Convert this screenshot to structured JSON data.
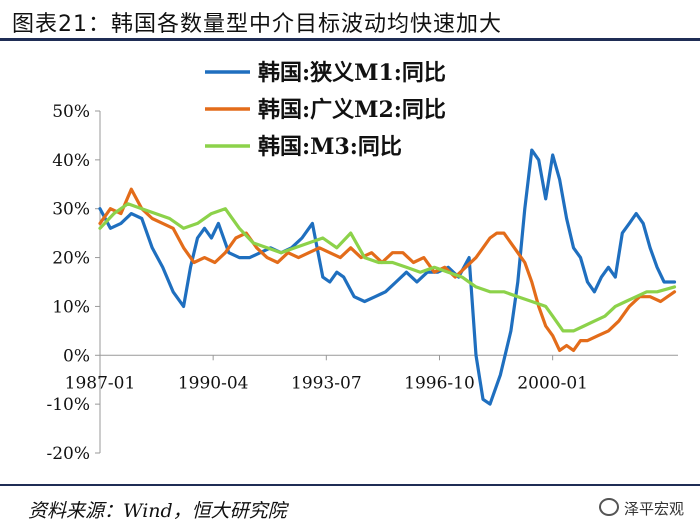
{
  "header": {
    "title": "图表21：韩国各数量型中介目标波动均快速加大"
  },
  "footer": {
    "source": "资料来源：Wind，恒大研究院",
    "watermark": "泽平宏观"
  },
  "chart_data": {
    "type": "line",
    "title": "图表21：韩国各数量型中介目标波动均快速加大",
    "xlabel": "",
    "ylabel": "",
    "ylim": [
      -20,
      50
    ],
    "yticks": [
      -20,
      -10,
      0,
      10,
      20,
      30,
      40,
      50
    ],
    "ytick_labels": [
      "-20%",
      "-10%",
      "0%",
      "10%",
      "20%",
      "30%",
      "40%",
      "50%"
    ],
    "xlim": [
      1987.0,
      2003.6
    ],
    "xticks": [
      1987.0,
      1990.25,
      1993.5,
      1996.75,
      2000.0
    ],
    "xtick_labels": [
      "1987-01",
      "1990-04",
      "1993-07",
      "1996-10",
      "2000-01"
    ],
    "legend_position": "top-right",
    "grid": false,
    "series": [
      {
        "name": "韩国:狭义M1:同比",
        "color": "#1f6fbf",
        "x": [
          1987.0,
          1987.3,
          1987.6,
          1987.9,
          1988.2,
          1988.5,
          1988.8,
          1989.1,
          1989.4,
          1989.6,
          1989.8,
          1990.0,
          1990.2,
          1990.4,
          1990.7,
          1991.0,
          1991.3,
          1991.6,
          1991.9,
          1992.2,
          1992.5,
          1992.8,
          1993.1,
          1993.4,
          1993.6,
          1993.8,
          1994.0,
          1994.3,
          1994.6,
          1994.9,
          1995.2,
          1995.5,
          1995.8,
          1996.1,
          1996.4,
          1996.7,
          1997.0,
          1997.3,
          1997.6,
          1997.8,
          1998.0,
          1998.2,
          1998.5,
          1998.8,
          1999.0,
          1999.2,
          1999.4,
          1999.6,
          1999.8,
          2000.0,
          2000.2,
          2000.4,
          2000.6,
          2000.8,
          2001.0,
          2001.2,
          2001.4,
          2001.6,
          2001.8,
          2002.0,
          2002.2,
          2002.4,
          2002.6,
          2002.8,
          2003.0,
          2003.2,
          2003.5
        ],
        "values": [
          30,
          26,
          27,
          29,
          28,
          22,
          18,
          13,
          10,
          18,
          24,
          26,
          24,
          27,
          21,
          20,
          20,
          21,
          22,
          21,
          22,
          24,
          27,
          16,
          15,
          17,
          16,
          12,
          11,
          12,
          13,
          15,
          17,
          15,
          17,
          17,
          18,
          16,
          20,
          0,
          -9,
          -10,
          -4,
          5,
          15,
          30,
          42,
          40,
          32,
          41,
          36,
          28,
          22,
          20,
          15,
          13,
          16,
          18,
          16,
          25,
          27,
          29,
          27,
          22,
          18,
          15,
          15
        ]
      },
      {
        "name": "韩国:广义M2:同比",
        "color": "#e36c1a",
        "x": [
          1987.0,
          1987.3,
          1987.6,
          1987.9,
          1988.2,
          1988.5,
          1988.8,
          1989.1,
          1989.4,
          1989.7,
          1990.0,
          1990.3,
          1990.6,
          1990.9,
          1991.2,
          1991.5,
          1991.8,
          1992.1,
          1992.4,
          1992.7,
          1993.0,
          1993.3,
          1993.6,
          1993.9,
          1994.2,
          1994.5,
          1994.8,
          1995.1,
          1995.4,
          1995.7,
          1996.0,
          1996.3,
          1996.6,
          1996.9,
          1997.2,
          1997.5,
          1997.8,
          1998.0,
          1998.2,
          1998.4,
          1998.6,
          1998.8,
          1999.0,
          1999.2,
          1999.4,
          1999.6,
          1999.8,
          2000.0,
          2000.2,
          2000.4,
          2000.6,
          2000.8,
          2001.0,
          2001.3,
          2001.6,
          2001.9,
          2002.2,
          2002.5,
          2002.8,
          2003.1,
          2003.5
        ],
        "values": [
          27,
          30,
          29,
          34,
          30,
          28,
          27,
          26,
          22,
          19,
          20,
          19,
          21,
          24,
          25,
          22,
          20,
          19,
          21,
          20,
          21,
          22,
          21,
          20,
          22,
          20,
          21,
          19,
          21,
          21,
          19,
          20,
          17,
          18,
          16,
          18,
          20,
          22,
          24,
          25,
          25,
          23,
          21,
          19,
          15,
          10,
          6,
          4,
          1,
          2,
          1,
          3,
          3,
          4,
          5,
          7,
          10,
          12,
          12,
          11,
          13
        ]
      },
      {
        "name": "韩国:M3:同比",
        "color": "#8cd24a",
        "x": [
          1987.0,
          1987.4,
          1987.8,
          1988.2,
          1988.6,
          1989.0,
          1989.4,
          1989.8,
          1990.2,
          1990.6,
          1991.0,
          1991.4,
          1991.8,
          1992.2,
          1992.6,
          1993.0,
          1993.4,
          1993.8,
          1994.2,
          1994.6,
          1995.0,
          1995.4,
          1995.8,
          1996.2,
          1996.6,
          1997.0,
          1997.4,
          1997.8,
          1998.2,
          1998.6,
          1999.0,
          1999.4,
          1999.8,
          2000.0,
          2000.3,
          2000.6,
          2000.9,
          2001.2,
          2001.5,
          2001.8,
          2002.1,
          2002.4,
          2002.7,
          2003.0,
          2003.5
        ],
        "values": [
          26,
          29,
          31,
          30,
          29,
          28,
          26,
          27,
          29,
          30,
          26,
          23,
          22,
          21,
          22,
          23,
          24,
          22,
          25,
          20,
          19,
          19,
          18,
          17,
          18,
          17,
          16,
          14,
          13,
          13,
          12,
          11,
          10,
          8,
          5,
          5,
          6,
          7,
          8,
          10,
          11,
          12,
          13,
          13,
          14
        ]
      }
    ]
  }
}
